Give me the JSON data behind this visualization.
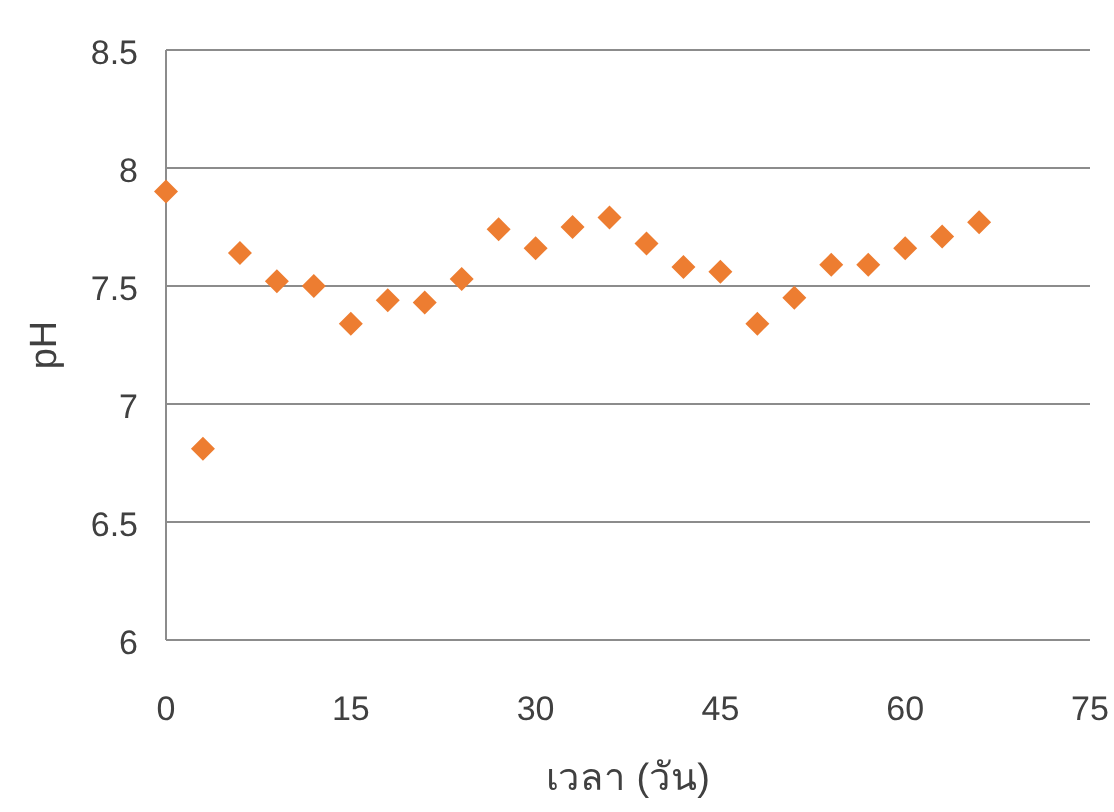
{
  "chart_data": {
    "type": "scatter",
    "xlabel": "เวลา (วัน)",
    "ylabel": "pH",
    "x": [
      0,
      3,
      6,
      9,
      12,
      15,
      18,
      21,
      24,
      27,
      30,
      33,
      36,
      39,
      42,
      45,
      48,
      51,
      54,
      57,
      60,
      63,
      66
    ],
    "series": [
      {
        "color": "#ed7d31",
        "values": [
          7.9,
          6.81,
          7.64,
          7.52,
          7.5,
          7.34,
          7.44,
          7.43,
          7.53,
          7.74,
          7.66,
          7.75,
          7.79,
          7.68,
          7.58,
          7.56,
          7.34,
          7.45,
          7.59,
          7.59,
          7.66,
          7.71,
          7.77
        ]
      }
    ],
    "xlim": [
      0,
      75
    ],
    "xticks": [
      0,
      15,
      30,
      45,
      60,
      75
    ],
    "ylim": [
      6,
      8.5
    ],
    "yticks": [
      6,
      6.5,
      7,
      7.5,
      8,
      8.5
    ],
    "grid": "y",
    "marker": "diamond"
  }
}
